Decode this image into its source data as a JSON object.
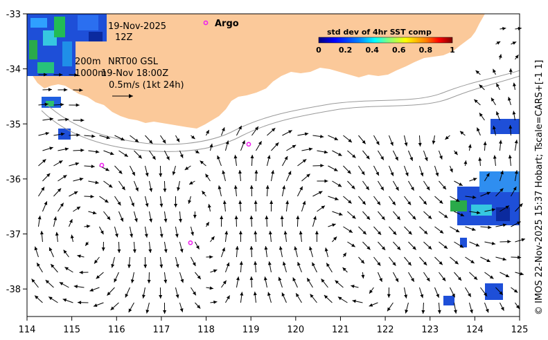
{
  "map": {
    "date_line": "19-Nov-2025",
    "time_line": "12Z",
    "depth_line_1": "200m",
    "depth_line_2": "1000m",
    "product_line": "NRT00 GSL",
    "time_stamp_line": "19-Nov 18:00Z",
    "scale_label": "0.5m/s (1kt 24h)",
    "argo_label": "Argo",
    "credit": "© IMOS 22-Nov-2025 15:37 Hobart; Tscale=CARS+[-1 1]",
    "land_color": "#fbc99a",
    "float_color": "#ee22ee"
  },
  "colorbar": {
    "title": "std dev of 4hr SST comp",
    "ticks": [
      "0",
      "0.2",
      "0.4",
      "0.6",
      "0.8",
      "1"
    ],
    "stops": [
      "#00007f",
      "#0000ff",
      "#0080ff",
      "#00ffff",
      "#80ff80",
      "#ffff00",
      "#ff8000",
      "#ff0000",
      "#7f0000"
    ]
  },
  "axes": {
    "x_ticks": [
      "114",
      "115",
      "116",
      "117",
      "118",
      "119",
      "120",
      "121",
      "122",
      "123",
      "124",
      "125"
    ],
    "y_ticks": [
      "-33",
      "-34",
      "-35",
      "-36",
      "-37",
      "-38"
    ],
    "lon_range": [
      114,
      125
    ],
    "lat_range": [
      -38.5,
      -33
    ]
  },
  "argo_floats": [
    {
      "lon": 118.95,
      "lat": -35.37
    },
    {
      "lon": 115.67,
      "lat": -35.75
    },
    {
      "lon": 117.65,
      "lat": -37.16
    }
  ]
}
